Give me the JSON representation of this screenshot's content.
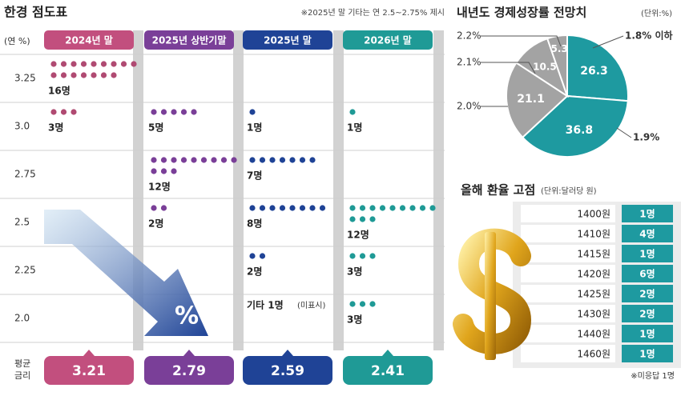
{
  "chart_data": [
    {
      "type": "dot",
      "title": "한경 점도표",
      "note": "※2025년 말 기타는 연 2.5~2.75% 제시",
      "y_label": "(연 %)",
      "categories": [
        "3.25",
        "3.0",
        "2.75",
        "2.5",
        "2.25",
        "2.0"
      ],
      "series": [
        {
          "name": "2024년 말",
          "color": "#c24f7e",
          "dot_color": "#b04a72",
          "values": [
            16,
            3,
            null,
            null,
            null,
            null
          ],
          "value_labels": [
            "16명",
            "3명",
            null,
            null,
            null,
            null
          ],
          "average": 3.21
        },
        {
          "name": "2025년 상반기말",
          "color": "#7a3f98",
          "dot_color": "#7a3f98",
          "values": [
            null,
            5,
            12,
            2,
            null,
            null
          ],
          "value_labels": [
            null,
            "5명",
            "12명",
            "2명",
            null,
            null
          ],
          "average": 2.79
        },
        {
          "name": "2025년 말",
          "color": "#1f4396",
          "dot_color": "#1f4396",
          "values": [
            null,
            1,
            7,
            8,
            2,
            null
          ],
          "value_labels": [
            null,
            "1명",
            "7명",
            "8명",
            "2명",
            null
          ],
          "average": 2.59
        },
        {
          "name": "2026년 말",
          "color": "#1f9a96",
          "dot_color": "#1f9a96",
          "values": [
            null,
            1,
            null,
            12,
            3,
            3
          ],
          "value_labels": [
            null,
            "1명",
            null,
            "12명",
            "3명",
            "3명"
          ],
          "average": 2.41
        }
      ],
      "annotation": "기타 1명",
      "annotation_sub": "(미표시)",
      "average_label": [
        "평균",
        "금리"
      ],
      "arrow_label": "%"
    },
    {
      "type": "pie",
      "title": "내년도 경제성장률 전망치",
      "unit": "(단위:%)",
      "categories": [
        "1.8% 이하",
        "1.9%",
        "2.0%",
        "2.1%",
        "2.2%"
      ],
      "values": [
        26.3,
        36.8,
        21.1,
        10.5,
        5.3
      ],
      "colors": [
        "#1e9aa0",
        "#1e9aa0",
        "#a3a3a3",
        "#a3a3a3",
        "#a3a3a3"
      ]
    }
  ],
  "table": {
    "title": "올해 환율 고점",
    "unit": "(단위:달러당 원)",
    "rows": [
      [
        "1400원",
        "1명"
      ],
      [
        "1410원",
        "4명"
      ],
      [
        "1415원",
        "1명"
      ],
      [
        "1420원",
        "6명"
      ],
      [
        "1425원",
        "2명"
      ],
      [
        "1430원",
        "2명"
      ],
      [
        "1440원",
        "1명"
      ],
      [
        "1460원",
        "1명"
      ]
    ],
    "note": "※미응답 1명"
  }
}
